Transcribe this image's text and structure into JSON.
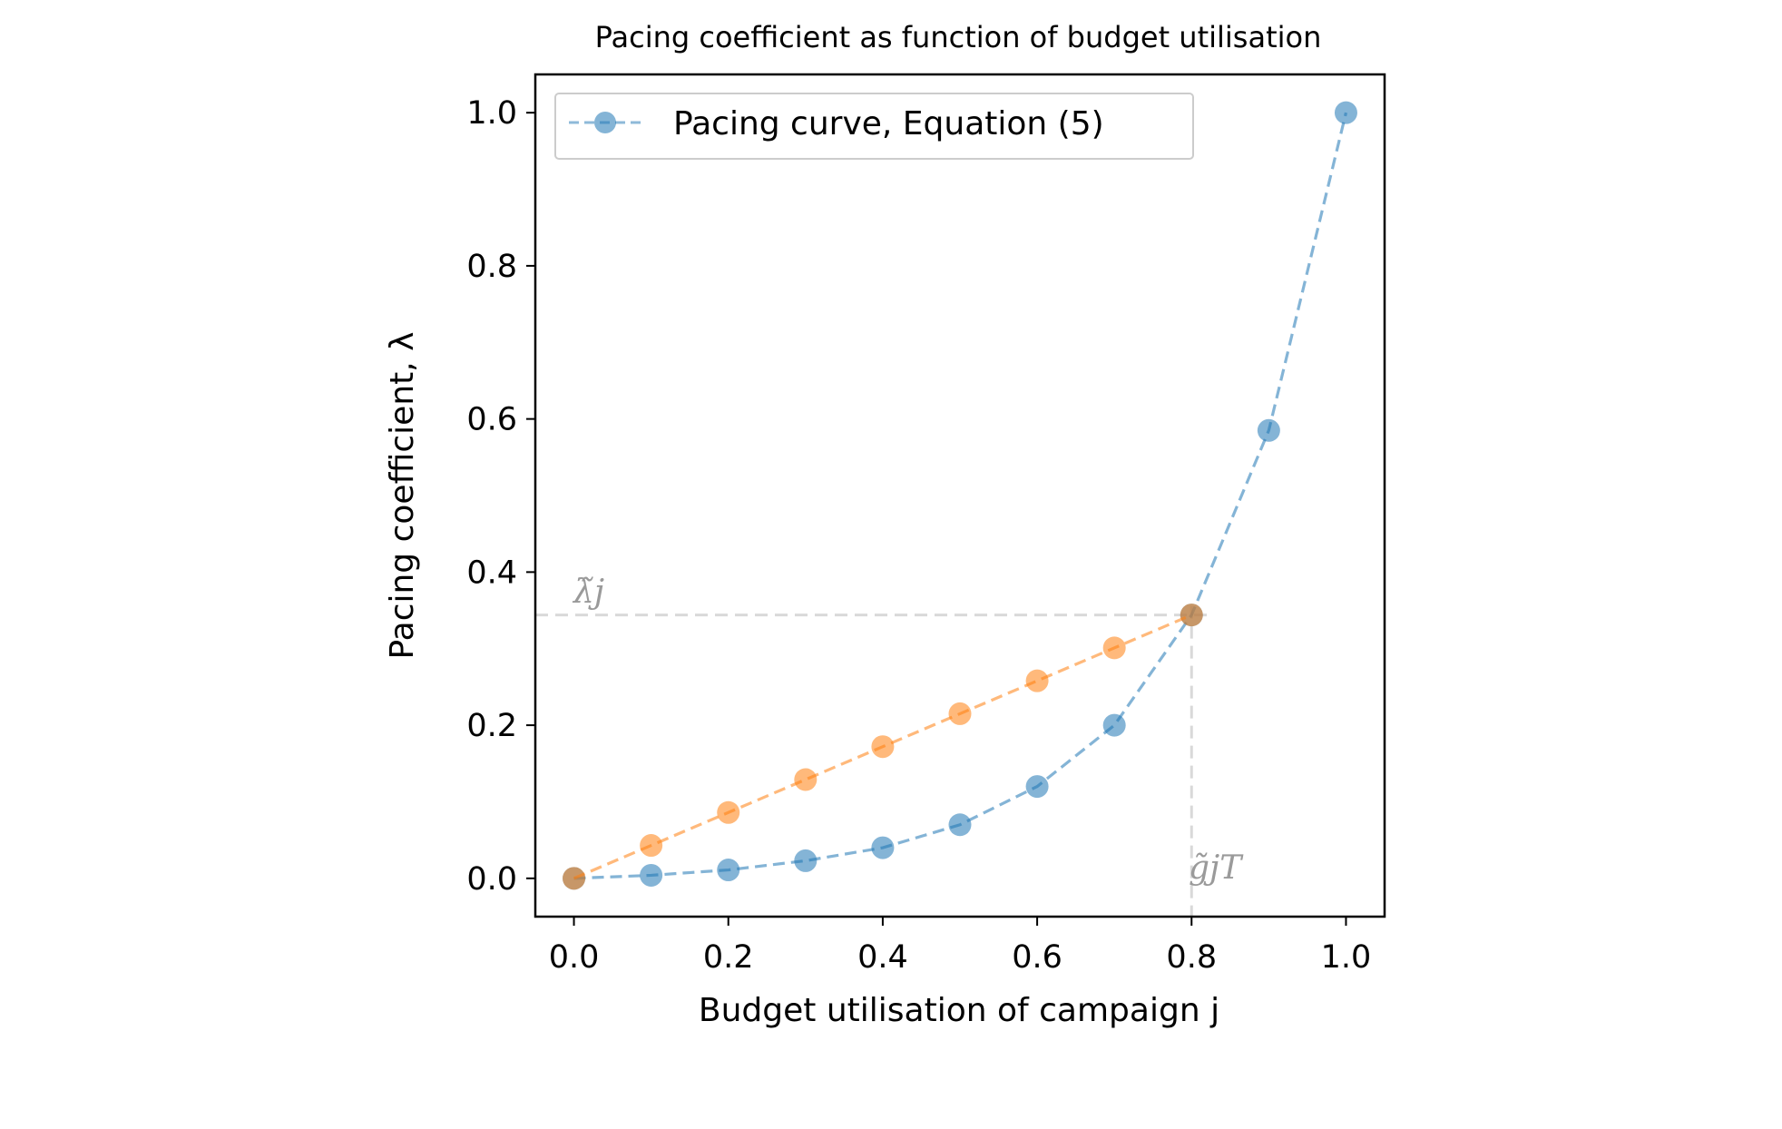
{
  "chart_data": {
    "type": "line",
    "title": "Pacing coefficient as function of budget utilisation",
    "xlabel": "Budget utilisation of campaign j",
    "ylabel": "Pacing coefficient, λ",
    "xlim": [
      -0.05,
      1.05
    ],
    "ylim": [
      -0.05,
      1.05
    ],
    "xticks": [
      "0.0",
      "0.2",
      "0.4",
      "0.6",
      "0.8",
      "1.0"
    ],
    "yticks": [
      "0.0",
      "0.2",
      "0.4",
      "0.6",
      "0.8",
      "1.0"
    ],
    "grid": false,
    "legend": {
      "position": "top-left"
    },
    "series": [
      {
        "name": "Pacing curve, Equation (5)",
        "color": "#1f77b4",
        "style": "dashed-with-markers",
        "x": [
          0.0,
          0.1,
          0.2,
          0.3,
          0.4,
          0.5,
          0.6,
          0.7,
          0.8,
          0.9,
          1.0
        ],
        "y": [
          0.0,
          0.004,
          0.011,
          0.023,
          0.04,
          0.07,
          0.12,
          0.2,
          0.344,
          0.585,
          1.0
        ]
      },
      {
        "color": "#ff7f0e",
        "style": "dashed-with-markers",
        "x": [
          0.0,
          0.1,
          0.2,
          0.3,
          0.4,
          0.5,
          0.6,
          0.7,
          0.8
        ],
        "y": [
          0.0,
          0.043,
          0.086,
          0.129,
          0.172,
          0.215,
          0.258,
          0.301,
          0.344
        ]
      }
    ],
    "reference_lines": {
      "color": "#d9d9d9",
      "horizontal_y": 0.344,
      "vertical_x": 0.8,
      "horizontal_label": "λ̃j",
      "vertical_label": "g̃jT"
    }
  }
}
